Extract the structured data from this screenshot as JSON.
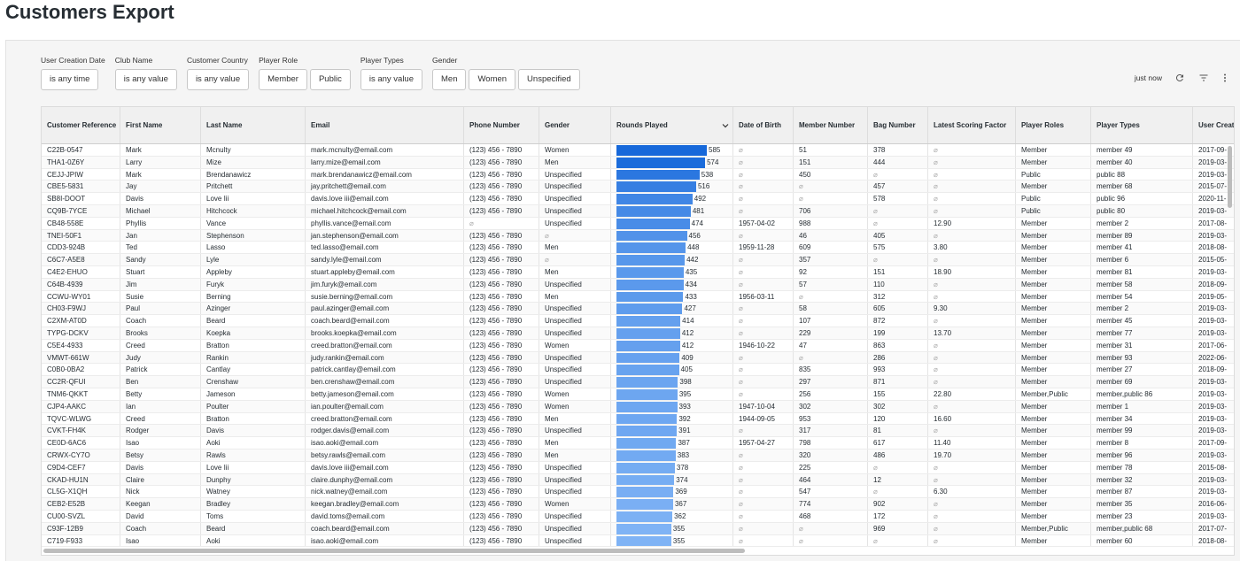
{
  "header": {
    "title": "Customers Export"
  },
  "filters": [
    {
      "label": "User Creation Date",
      "options": [
        "is any time"
      ]
    },
    {
      "label": "Club Name",
      "options": [
        "is any value"
      ]
    },
    {
      "label": "Customer Country",
      "options": [
        "is any value"
      ]
    },
    {
      "label": "Player Role",
      "options": [
        "Member",
        "Public"
      ]
    },
    {
      "label": "Player Types",
      "options": [
        "is any value"
      ]
    },
    {
      "label": "Gender",
      "options": [
        "Men",
        "Women",
        "Unspecified"
      ]
    }
  ],
  "toolbar": {
    "updated": "just now"
  },
  "table": {
    "columns": [
      "Customer Reference",
      "First Name",
      "Last Name",
      "Email",
      "Phone Number",
      "Gender",
      "Rounds Played",
      "Date of Birth",
      "Member Number",
      "Bag Number",
      "Latest Scoring Factor",
      "Player Roles",
      "Player Types",
      "User Creation"
    ],
    "rows": [
      [
        "C22B-0547",
        "Mark",
        "Mcnulty",
        "mark.mcnulty@email.com",
        "(123) 456 - 7890",
        "Women",
        585,
        "⌀",
        "51",
        "378",
        "⌀",
        "Member",
        "member 49",
        "2017-09-"
      ],
      [
        "THA1-0Z6Y",
        "Larry",
        "Mize",
        "larry.mize@email.com",
        "(123) 456 - 7890",
        "Men",
        574,
        "⌀",
        "151",
        "444",
        "⌀",
        "Member",
        "member 40",
        "2019-03-"
      ],
      [
        "CEJJ-JPIW",
        "Mark",
        "Brendanawicz",
        "mark.brendanawicz@email.com",
        "(123) 456 - 7890",
        "Unspecified",
        538,
        "⌀",
        "450",
        "⌀",
        "⌀",
        "Public",
        "public 88",
        "2019-03-"
      ],
      [
        "CBE5-5831",
        "Jay",
        "Pritchett",
        "jay.pritchett@email.com",
        "(123) 456 - 7890",
        "Unspecified",
        516,
        "⌀",
        "⌀",
        "457",
        "⌀",
        "Member",
        "member 68",
        "2015-07-"
      ],
      [
        "SB8I-DOOT",
        "Davis",
        "Love Iii",
        "davis.love iii@email.com",
        "(123) 456 - 7890",
        "Unspecified",
        492,
        "⌀",
        "⌀",
        "578",
        "⌀",
        "Public",
        "public 96",
        "2020-11-"
      ],
      [
        "CQ9B-7YCE",
        "Michael",
        "Hitchcock",
        "michael.hitchcock@email.com",
        "(123) 456 - 7890",
        "Unspecified",
        481,
        "⌀",
        "706",
        "⌀",
        "⌀",
        "Public",
        "public 80",
        "2019-03-"
      ],
      [
        "CB48-558E",
        "Phyllis",
        "Vance",
        "phyllis.vance@email.com",
        "⌀",
        "Unspecified",
        474,
        "1957-04-02",
        "988",
        "⌀",
        "12.90",
        "Member",
        "member 2",
        "2017-08-"
      ],
      [
        "TNEI-50F1",
        "Jan",
        "Stephenson",
        "jan.stephenson@email.com",
        "(123) 456 - 7890",
        "⌀",
        456,
        "⌀",
        "46",
        "405",
        "⌀",
        "Member",
        "member 89",
        "2019-03-"
      ],
      [
        "CDD3-924B",
        "Ted",
        "Lasso",
        "ted.lasso@email.com",
        "(123) 456 - 7890",
        "Men",
        448,
        "1959-11-28",
        "609",
        "575",
        "3.80",
        "Member",
        "member 41",
        "2018-08-"
      ],
      [
        "C6C7-A5E8",
        "Sandy",
        "Lyle",
        "sandy.lyle@email.com",
        "(123) 456 - 7890",
        "⌀",
        442,
        "⌀",
        "357",
        "⌀",
        "⌀",
        "Member",
        "member 6",
        "2015-05-"
      ],
      [
        "C4E2-EHUO",
        "Stuart",
        "Appleby",
        "stuart.appleby@email.com",
        "(123) 456 - 7890",
        "Men",
        435,
        "⌀",
        "92",
        "151",
        "18.90",
        "Member",
        "member 81",
        "2019-03-"
      ],
      [
        "C64B-4939",
        "Jim",
        "Furyk",
        "jim.furyk@email.com",
        "(123) 456 - 7890",
        "Unspecified",
        434,
        "⌀",
        "57",
        "110",
        "⌀",
        "Member",
        "member 58",
        "2018-09-"
      ],
      [
        "CCWU-WY01",
        "Susie",
        "Berning",
        "susie.berning@email.com",
        "(123) 456 - 7890",
        "Men",
        433,
        "1956-03-11",
        "⌀",
        "312",
        "⌀",
        "Member",
        "member 54",
        "2019-05-"
      ],
      [
        "CH03-F9WJ",
        "Paul",
        "Azinger",
        "paul.azinger@email.com",
        "(123) 456 - 7890",
        "Unspecified",
        427,
        "⌀",
        "58",
        "605",
        "9.30",
        "Member",
        "member 2",
        "2019-03-"
      ],
      [
        "C2XM-AT0D",
        "Coach",
        "Beard",
        "coach.beard@email.com",
        "(123) 456 - 7890",
        "Unspecified",
        414,
        "⌀",
        "107",
        "872",
        "⌀",
        "Member",
        "member 45",
        "2019-03-"
      ],
      [
        "TYPG-DCKV",
        "Brooks",
        "Koepka",
        "brooks.koepka@email.com",
        "(123) 456 - 7890",
        "Unspecified",
        412,
        "⌀",
        "229",
        "199",
        "13.70",
        "Member",
        "member 77",
        "2019-03-"
      ],
      [
        "C5E4-4933",
        "Creed",
        "Bratton",
        "creed.bratton@email.com",
        "(123) 456 - 7890",
        "Women",
        412,
        "1946-10-22",
        "47",
        "863",
        "⌀",
        "Member",
        "member 31",
        "2017-06-"
      ],
      [
        "VMWT-661W",
        "Judy",
        "Rankin",
        "judy.rankin@email.com",
        "(123) 456 - 7890",
        "Unspecified",
        409,
        "⌀",
        "⌀",
        "286",
        "⌀",
        "Member",
        "member 93",
        "2022-06-"
      ],
      [
        "C0B0-0BA2",
        "Patrick",
        "Cantlay",
        "patrick.cantlay@email.com",
        "(123) 456 - 7890",
        "Unspecified",
        405,
        "⌀",
        "835",
        "993",
        "⌀",
        "Member",
        "member 27",
        "2018-09-"
      ],
      [
        "CC2R-QFUI",
        "Ben",
        "Crenshaw",
        "ben.crenshaw@email.com",
        "(123) 456 - 7890",
        "Unspecified",
        398,
        "⌀",
        "297",
        "871",
        "⌀",
        "Member",
        "member 69",
        "2019-03-"
      ],
      [
        "TNM6-QKKT",
        "Betty",
        "Jameson",
        "betty.jameson@email.com",
        "(123) 456 - 7890",
        "Women",
        395,
        "⌀",
        "256",
        "155",
        "22.80",
        "Member,Public",
        "member,public 86",
        "2019-03-"
      ],
      [
        "CJP4-AAKC",
        "Ian",
        "Poulter",
        "ian.poulter@email.com",
        "(123) 456 - 7890",
        "Women",
        393,
        "1947-10-04",
        "302",
        "302",
        "⌀",
        "Member",
        "member 1",
        "2019-03-"
      ],
      [
        "TQVC-WLWG",
        "Creed",
        "Bratton",
        "creed.bratton@email.com",
        "(123) 456 - 7890",
        "Men",
        392,
        "1944-09-05",
        "953",
        "120",
        "16.60",
        "Member",
        "member 34",
        "2019-03-"
      ],
      [
        "CVKT-FH4K",
        "Rodger",
        "Davis",
        "rodger.davis@email.com",
        "(123) 456 - 7890",
        "Unspecified",
        391,
        "⌀",
        "317",
        "81",
        "⌀",
        "Member",
        "member 99",
        "2019-03-"
      ],
      [
        "CE0D-6AC6",
        "Isao",
        "Aoki",
        "isao.aoki@email.com",
        "(123) 456 - 7890",
        "Men",
        387,
        "1957-04-27",
        "798",
        "617",
        "11.40",
        "Member",
        "member 8",
        "2017-09-"
      ],
      [
        "CRWX-CY7O",
        "Betsy",
        "Rawls",
        "betsy.rawls@email.com",
        "(123) 456 - 7890",
        "Men",
        383,
        "⌀",
        "320",
        "486",
        "19.70",
        "Member",
        "member 96",
        "2019-03-"
      ],
      [
        "C9D4-CEF7",
        "Davis",
        "Love Iii",
        "davis.love iii@email.com",
        "(123) 456 - 7890",
        "Unspecified",
        378,
        "⌀",
        "225",
        "⌀",
        "⌀",
        "Member",
        "member 78",
        "2015-08-"
      ],
      [
        "CKAD-HU1N",
        "Claire",
        "Dunphy",
        "claire.dunphy@email.com",
        "(123) 456 - 7890",
        "Unspecified",
        374,
        "⌀",
        "464",
        "12",
        "⌀",
        "Member",
        "member 32",
        "2019-03-"
      ],
      [
        "CL5G-X1QH",
        "Nick",
        "Watney",
        "nick.watney@email.com",
        "(123) 456 - 7890",
        "Unspecified",
        369,
        "⌀",
        "547",
        "⌀",
        "6.30",
        "Member",
        "member 87",
        "2019-03-"
      ],
      [
        "CEB2-E52B",
        "Keegan",
        "Bradley",
        "keegan.bradley@email.com",
        "(123) 456 - 7890",
        "Women",
        367,
        "⌀",
        "774",
        "902",
        "⌀",
        "Member",
        "member 35",
        "2016-06-"
      ],
      [
        "CU00-SVZL",
        "David",
        "Toms",
        "david.toms@email.com",
        "(123) 456 - 7890",
        "Unspecified",
        362,
        "⌀",
        "468",
        "172",
        "⌀",
        "Member",
        "member 23",
        "2019-03-"
      ],
      [
        "C93F-12B9",
        "Coach",
        "Beard",
        "coach.beard@email.com",
        "(123) 456 - 7890",
        "Unspecified",
        355,
        "⌀",
        "⌀",
        "969",
        "⌀",
        "Member,Public",
        "member,public 68",
        "2017-07-"
      ],
      [
        "C719-F933",
        "Isao",
        "Aoki",
        "isao.aoki@email.com",
        "(123) 456 - 7890",
        "Unspecified",
        355,
        "⌀",
        "⌀",
        "⌀",
        "⌀",
        "Member",
        "member 60",
        "2018-08-"
      ]
    ]
  }
}
